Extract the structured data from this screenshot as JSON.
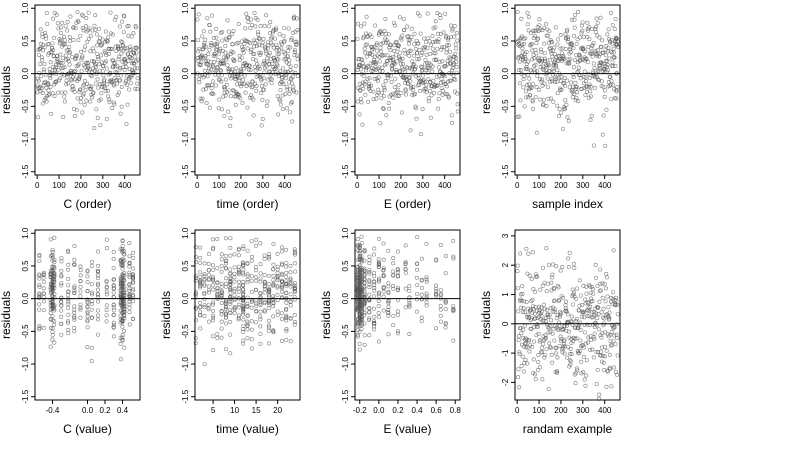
{
  "panels_layout": {
    "rows": 2,
    "cols": 4
  },
  "chart_data": [
    {
      "id": "c-order",
      "type": "scatter",
      "xlabel": "C (order)",
      "ylabel": "residuals",
      "xlim": [
        -10,
        470
      ],
      "ylim": [
        -1.55,
        1.05
      ],
      "xticks": [
        0,
        100,
        200,
        300,
        400
      ],
      "xticklabels": [
        "0",
        "100",
        "200",
        "300",
        "400"
      ],
      "yticks": [
        -1.5,
        -1.0,
        -0.5,
        0.0,
        0.5,
        1.0
      ],
      "yticklabels": [
        "-1.5",
        "-1.0",
        "-0.5",
        "0.0",
        "0.5",
        "1.0"
      ],
      "hline": 0,
      "gen": {
        "mode": "index",
        "n": 460,
        "seed": 11,
        "sd": 0.42,
        "skewNeg": true
      }
    },
    {
      "id": "time-order",
      "type": "scatter",
      "xlabel": "time (order)",
      "ylabel": "residuals",
      "xlim": [
        -10,
        470
      ],
      "ylim": [
        -1.55,
        1.05
      ],
      "xticks": [
        0,
        100,
        200,
        300,
        400
      ],
      "xticklabels": [
        "0",
        "100",
        "200",
        "300",
        "400"
      ],
      "yticks": [
        -1.5,
        -1.0,
        -0.5,
        0.0,
        0.5,
        1.0
      ],
      "yticklabels": [
        "-1.5",
        "-1.0",
        "-0.5",
        "0.0",
        "0.5",
        "1.0"
      ],
      "hline": 0,
      "gen": {
        "mode": "index",
        "n": 460,
        "seed": 23,
        "sd": 0.42,
        "skewNeg": true
      }
    },
    {
      "id": "e-order",
      "type": "scatter",
      "xlabel": "E (order)",
      "ylabel": "residuals",
      "xlim": [
        -10,
        470
      ],
      "ylim": [
        -1.55,
        1.05
      ],
      "xticks": [
        0,
        100,
        200,
        300,
        400
      ],
      "xticklabels": [
        "0",
        "100",
        "200",
        "300",
        "400"
      ],
      "yticks": [
        -1.5,
        -1.0,
        -0.5,
        0.0,
        0.5,
        1.0
      ],
      "yticklabels": [
        "-1.5",
        "-1.0",
        "-0.5",
        "0.0",
        "0.5",
        "1.0"
      ],
      "hline": 0,
      "gen": {
        "mode": "index",
        "n": 460,
        "seed": 37,
        "sd": 0.42,
        "skewNeg": true
      }
    },
    {
      "id": "sample-index",
      "type": "scatter",
      "xlabel": "sample index",
      "ylabel": "residuals",
      "xlim": [
        -10,
        470
      ],
      "ylim": [
        -1.55,
        1.05
      ],
      "xticks": [
        0,
        100,
        200,
        300,
        400
      ],
      "xticklabels": [
        "0",
        "100",
        "200",
        "300",
        "400"
      ],
      "yticks": [
        -1.5,
        -1.0,
        -0.5,
        0.0,
        0.5,
        1.0
      ],
      "yticklabels": [
        "-1.5",
        "-1.0",
        "-0.5",
        "0.0",
        "0.5",
        "1.0"
      ],
      "hline": 0,
      "gen": {
        "mode": "index",
        "n": 460,
        "seed": 53,
        "sd": 0.42,
        "skewNeg": true,
        "clusterEnd": [
          450,
          0.5
        ]
      }
    },
    {
      "id": "c-value",
      "type": "scatter",
      "xlabel": "C (value)",
      "ylabel": "residuals",
      "xlim": [
        -0.6,
        0.6
      ],
      "ylim": [
        -1.55,
        1.05
      ],
      "xticks": [
        -0.4,
        0.0,
        0.2,
        0.4
      ],
      "xticklabels": [
        "-0.4",
        "0.0",
        "0.2",
        "0.4"
      ],
      "yticks": [
        -1.5,
        -1.0,
        -0.5,
        0.0,
        0.5,
        1.0
      ],
      "yticklabels": [
        "-1.5",
        "-1.0",
        "-0.5",
        "0.0",
        "0.5",
        "1.0"
      ],
      "hline": 0,
      "gen": {
        "mode": "columns",
        "seed": 71,
        "sd": 0.42,
        "skewNeg": true,
        "columns": [
          -0.55,
          -0.5,
          -0.42,
          -0.4,
          -0.38,
          -0.3,
          -0.22,
          -0.15,
          -0.08,
          0.0,
          0.05,
          0.12,
          0.22,
          0.3,
          0.38,
          0.4,
          0.42,
          0.48,
          0.52
        ],
        "weights": [
          3,
          2,
          4,
          10,
          4,
          3,
          3,
          3,
          2,
          3,
          2,
          3,
          2,
          4,
          5,
          12,
          5,
          4,
          3
        ]
      }
    },
    {
      "id": "time-value",
      "type": "scatter",
      "xlabel": "time (value)",
      "ylabel": "residuals",
      "xlim": [
        0.8,
        25.2
      ],
      "ylim": [
        -1.55,
        1.05
      ],
      "xticks": [
        5,
        10,
        15,
        20
      ],
      "xticklabels": [
        "5",
        "10",
        "15",
        "20"
      ],
      "yticks": [
        -1.5,
        -1.0,
        -0.5,
        0.0,
        0.5,
        1.0
      ],
      "yticklabels": [
        "-1.5",
        "-1.0",
        "-0.5",
        "0.0",
        "0.5",
        "1.0"
      ],
      "hline": 0,
      "gen": {
        "mode": "columns",
        "seed": 89,
        "sd": 0.42,
        "skewNeg": true,
        "columns": [
          1,
          2,
          3,
          4,
          5,
          6,
          7,
          8,
          9,
          10,
          11,
          12,
          13,
          14,
          15,
          16,
          17,
          18,
          19,
          20,
          21,
          22,
          23,
          24
        ],
        "weights": [
          3,
          4,
          3,
          3,
          4,
          3,
          4,
          5,
          6,
          3,
          4,
          9,
          4,
          3,
          3,
          4,
          3,
          5,
          4,
          3,
          4,
          5,
          3,
          4
        ]
      }
    },
    {
      "id": "e-value",
      "type": "scatter",
      "xlabel": "E (value)",
      "ylabel": "residuals",
      "xlim": [
        -0.25,
        0.85
      ],
      "ylim": [
        -1.55,
        1.05
      ],
      "xticks": [
        -0.2,
        0.0,
        0.2,
        0.4,
        0.6,
        0.8
      ],
      "xticklabels": [
        "-0.2",
        "0.0",
        "0.2",
        "0.4",
        "0.6",
        "0.8"
      ],
      "yticks": [
        -1.5,
        -1.0,
        -0.5,
        0.0,
        0.5,
        1.0
      ],
      "yticklabels": [
        "-1.5",
        "-1.0",
        "-0.5",
        "0.0",
        "0.5",
        "1.0"
      ],
      "hline": 0,
      "gen": {
        "mode": "columns",
        "seed": 97,
        "sd": 0.42,
        "skewNeg": true,
        "columns": [
          -0.22,
          -0.2,
          -0.18,
          -0.15,
          -0.1,
          -0.05,
          0.0,
          0.05,
          0.1,
          0.15,
          0.2,
          0.28,
          0.32,
          0.4,
          0.45,
          0.5,
          0.6,
          0.65,
          0.7,
          0.78
        ],
        "weights": [
          14,
          22,
          12,
          8,
          5,
          4,
          4,
          3,
          3,
          2,
          3,
          2,
          2,
          2,
          2,
          2,
          2,
          2,
          2,
          2
        ]
      }
    },
    {
      "id": "randam-example",
      "type": "scatter",
      "xlabel": "randam example",
      "ylabel": "residuals",
      "xlim": [
        -10,
        470
      ],
      "ylim": [
        -2.6,
        3.2
      ],
      "xticks": [
        0,
        100,
        200,
        300,
        400
      ],
      "xticklabels": [
        "0",
        "100",
        "200",
        "300",
        "400"
      ],
      "yticks": [
        -2,
        -1,
        0,
        1,
        2,
        3
      ],
      "yticklabels": [
        "-2",
        "-1",
        "0",
        "1",
        "2",
        "3"
      ],
      "hline": 0,
      "gen": {
        "mode": "index",
        "n": 460,
        "seed": 131,
        "sd": 1.0,
        "skewNeg": false
      }
    }
  ]
}
